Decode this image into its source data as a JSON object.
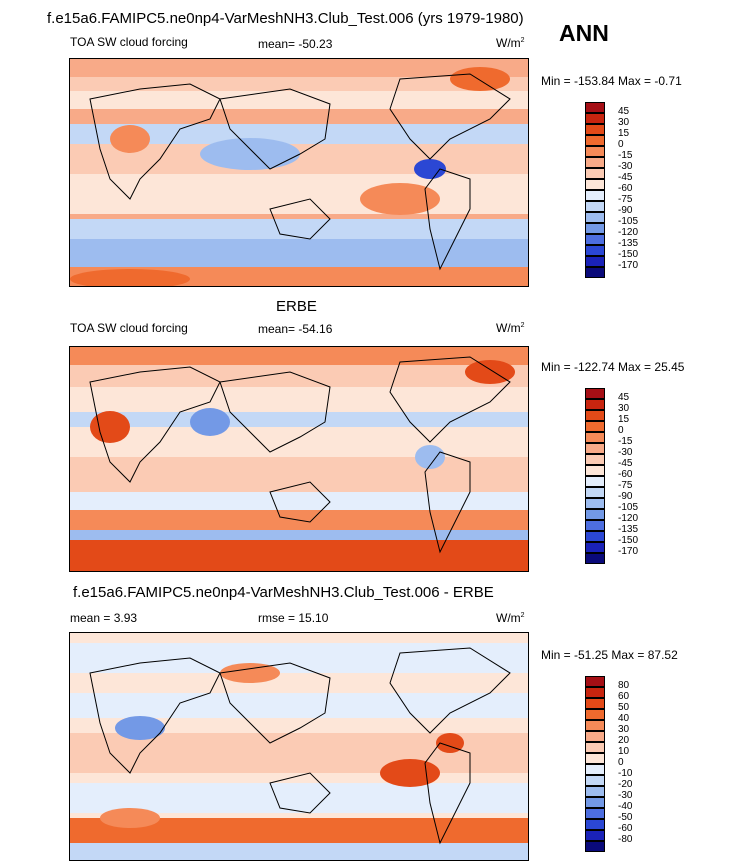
{
  "header": {
    "run_title": "f.e15a6.FAMIPC5.ne0np4-VarMeshNH3.Club_Test.006 (yrs 1979-1980)",
    "season": "ANN"
  },
  "panels": [
    {
      "id": "model",
      "title": "",
      "left": "TOA SW cloud forcing",
      "center": "mean= -50.23",
      "units": "W/m",
      "units_sup": "2",
      "minmax": "Min = -153.84 Max =  -0.71",
      "levels": [
        "45",
        "30",
        "15",
        "0",
        "-15",
        "-30",
        "-45",
        "-60",
        "-75",
        "-90",
        "-105",
        "-120",
        "-135",
        "-150",
        "-170"
      ],
      "colors": [
        "#a50f15",
        "#c8250f",
        "#e34a18",
        "#ef6a2e",
        "#f58a58",
        "#f8aa88",
        "#fbcbb4",
        "#fde6d8",
        "#e4eefc",
        "#c3d8f6",
        "#9dbcef",
        "#7399e6",
        "#4d6ee0",
        "#2b47d4",
        "#1a22b8",
        "#0a0a7a"
      ]
    },
    {
      "id": "obs",
      "title": "ERBE",
      "left": "TOA SW cloud forcing",
      "center": "mean= -54.16",
      "units": "W/m",
      "units_sup": "2",
      "minmax": "Min = -122.74 Max =  25.45",
      "levels": [
        "45",
        "30",
        "15",
        "0",
        "-15",
        "-30",
        "-45",
        "-60",
        "-75",
        "-90",
        "-105",
        "-120",
        "-135",
        "-150",
        "-170"
      ],
      "colors": [
        "#a50f15",
        "#c8250f",
        "#e34a18",
        "#ef6a2e",
        "#f58a58",
        "#f8aa88",
        "#fbcbb4",
        "#fde6d8",
        "#e4eefc",
        "#c3d8f6",
        "#9dbcef",
        "#7399e6",
        "#4d6ee0",
        "#2b47d4",
        "#1a22b8",
        "#0a0a7a"
      ]
    },
    {
      "id": "diff",
      "title": "f.e15a6.FAMIPC5.ne0np4-VarMeshNH3.Club_Test.006 - ERBE",
      "left": "mean =   3.93",
      "center": "rmse =  15.10",
      "units": "W/m",
      "units_sup": "2",
      "minmax": "Min = -51.25 Max =  87.52",
      "levels": [
        "80",
        "60",
        "50",
        "40",
        "30",
        "20",
        "10",
        "0",
        "-10",
        "-20",
        "-30",
        "-40",
        "-50",
        "-60",
        "-80"
      ],
      "colors": [
        "#a50f15",
        "#c8250f",
        "#e34a18",
        "#ef6a2e",
        "#f58a58",
        "#f8aa88",
        "#fbcbb4",
        "#fde6d8",
        "#e4eefc",
        "#c3d8f6",
        "#9dbcef",
        "#7399e6",
        "#4d6ee0",
        "#2b47d4",
        "#1a22b8",
        "#0a0a7a"
      ]
    }
  ],
  "chart_data": {
    "type": "heatmap",
    "description_fields": [
      "field",
      "units",
      "mean"
    ],
    "maps": [
      {
        "name": "model",
        "field": "TOA SW cloud forcing",
        "units": "W/m2",
        "mean": -50.23,
        "min": -153.84,
        "max": -0.71
      },
      {
        "name": "ERBE",
        "field": "TOA SW cloud forcing",
        "units": "W/m2",
        "mean": -54.16,
        "min": -122.74,
        "max": 25.45
      },
      {
        "name": "difference",
        "mean": 3.93,
        "rmse": 15.1,
        "units": "W/m2",
        "min": -51.25,
        "max": 87.52
      }
    ]
  }
}
